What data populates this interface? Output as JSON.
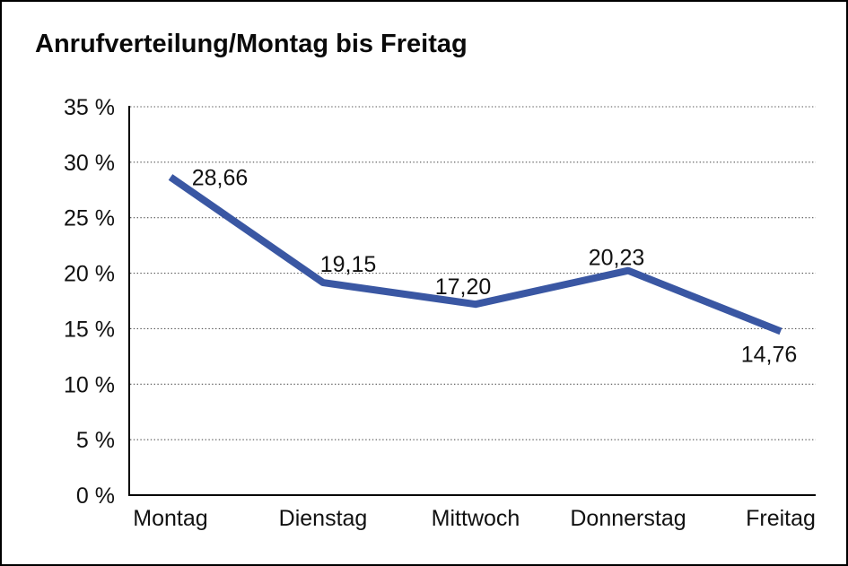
{
  "window": {
    "background_color": "#ffffff",
    "border_color": "#000000"
  },
  "chart_data": {
    "type": "line",
    "title": "Anrufverteilung/Montag bis Freitag",
    "categories": [
      "Montag",
      "Dienstag",
      "Mittwoch",
      "Donnerstag",
      "Freitag"
    ],
    "values": [
      28.66,
      19.15,
      17.2,
      20.23,
      14.76
    ],
    "value_labels": [
      "28,66",
      "19,15",
      "17,20",
      "20,23",
      "14,76"
    ],
    "y_tick_values": [
      0,
      5,
      10,
      15,
      20,
      25,
      30,
      35
    ],
    "y_tick_labels": [
      "0 %",
      "5 %",
      "10 %",
      "15 %",
      "20 %",
      "25 %",
      "30 %",
      "35 %"
    ],
    "ylim": [
      0,
      35
    ],
    "xlabel": "",
    "ylabel": "",
    "grid": "horizontal-dotted",
    "legend_position": "none",
    "line_color": "#3A57A3",
    "axis_color": "#000000",
    "gridline_color": "#555555",
    "text_color": "#111111"
  }
}
